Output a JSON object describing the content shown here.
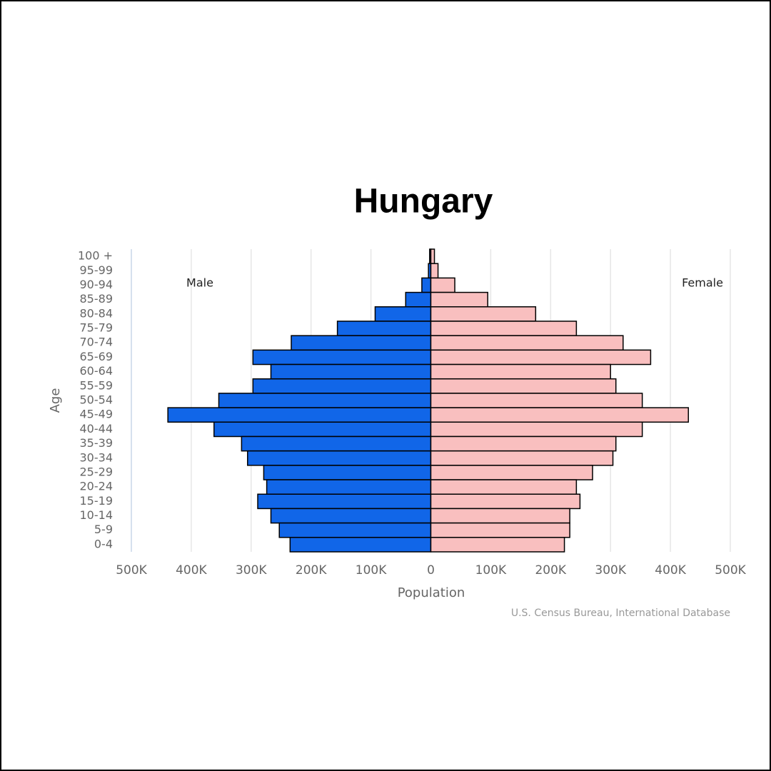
{
  "chart_data": {
    "type": "pyramid",
    "title": "Hungary",
    "categories": [
      "100 +",
      "95-99",
      "90-94",
      "85-89",
      "80-84",
      "75-79",
      "70-74",
      "65-69",
      "60-64",
      "55-59",
      "50-54",
      "45-49",
      "40-44",
      "35-39",
      "30-34",
      "25-29",
      "20-24",
      "15-19",
      "10-14",
      "5-9",
      "0-4"
    ],
    "series": [
      {
        "name": "Male",
        "color": "#1166e8",
        "values": [
          2000,
          4000,
          15000,
          42000,
          93000,
          156000,
          233000,
          297000,
          267000,
          297000,
          354000,
          439000,
          362000,
          316000,
          306000,
          279000,
          274000,
          289000,
          267000,
          253000,
          235000
        ]
      },
      {
        "name": "Female",
        "color": "#f9bfbf",
        "values": [
          6000,
          12000,
          40000,
          95000,
          175000,
          243000,
          321000,
          367000,
          300000,
          309000,
          353000,
          430000,
          353000,
          309000,
          304000,
          270000,
          243000,
          249000,
          232000,
          232000,
          223000
        ]
      }
    ],
    "xlim": [
      -500000,
      500000
    ],
    "xticks": [
      {
        "value": -500000,
        "label": "500K"
      },
      {
        "value": -400000,
        "label": "400K"
      },
      {
        "value": -300000,
        "label": "300K"
      },
      {
        "value": -200000,
        "label": "200K"
      },
      {
        "value": -100000,
        "label": "100K"
      },
      0,
      {
        "value": 100000,
        "label": "100K"
      },
      {
        "value": 200000,
        "label": "200K"
      },
      {
        "value": 300000,
        "label": "300K"
      },
      {
        "value": 400000,
        "label": "400K"
      },
      {
        "value": 500000,
        "label": "500K"
      }
    ],
    "xlabel": "Population",
    "ylabel": "Age",
    "source": "U.S. Census Bureau, International Database",
    "grid": true
  }
}
